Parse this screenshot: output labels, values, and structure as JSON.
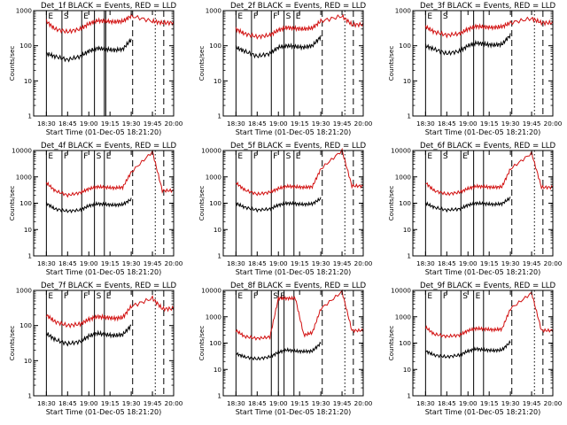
{
  "figure": {
    "colors": {
      "events": "#000000",
      "lld": "#d21010",
      "axes": "#000000",
      "background": "#ffffff"
    },
    "x_tick_labels": [
      "18:30",
      "18:45",
      "19:00",
      "19:15",
      "19:30",
      "19:45",
      "20:00"
    ],
    "x_label": "Start Time (01-Dec-05 18:21:20)",
    "y_label": "Counts/sec",
    "panels": [
      {
        "title": "Det_1f BLACK = Events, RED = LLD",
        "ymax": 1000,
        "yticks": [
          "1",
          "10",
          "100",
          "1000"
        ],
        "flags": [
          "E",
          "S",
          "E"
        ]
      },
      {
        "title": "Det_2f BLACK = Events, RED = LLD",
        "ymax": 1000,
        "yticks": [
          "1",
          "10",
          "100",
          "1000"
        ],
        "flags": [
          "E",
          "F",
          "F",
          "S",
          "E"
        ]
      },
      {
        "title": "Det_3f BLACK = Events, RED = LLD",
        "ymax": 1000,
        "yticks": [
          "1",
          "10",
          "100",
          "1000"
        ],
        "flags": [
          "E",
          "S"
        ]
      },
      {
        "title": "Det_4f BLACK = Events, RED = LLD",
        "ymax": 10000,
        "yticks": [
          "1",
          "10",
          "100",
          "1000",
          "10000"
        ],
        "flags": [
          "E",
          "F",
          "F",
          "S",
          "E"
        ]
      },
      {
        "title": "Det_5f BLACK = Events, RED = LLD",
        "ymax": 10000,
        "yticks": [
          "1",
          "10",
          "100",
          "1000",
          "10000"
        ],
        "flags": [
          "E",
          "F",
          "F",
          "S",
          "E"
        ]
      },
      {
        "title": "Det_6f BLACK = Events, RED = LLD",
        "ymax": 10000,
        "yticks": [
          "1",
          "10",
          "100",
          "1000",
          "10000"
        ],
        "flags": [
          "E",
          "S",
          "E"
        ]
      },
      {
        "title": "Det_7f BLACK = Events, RED = LLD",
        "ymax": 1000,
        "yticks": [
          "1",
          "10",
          "100",
          "1000"
        ],
        "flags": [
          "E",
          "F",
          "F",
          "S",
          "E"
        ]
      },
      {
        "title": "Det_8f BLACK = Events, RED = LLD",
        "ymax": 10000,
        "yticks": [
          "1",
          "10",
          "100",
          "1000",
          "10000"
        ],
        "flags": [
          "E",
          "F",
          "S",
          "E"
        ]
      },
      {
        "title": "Det_9f BLACK = Events, RED = LLD",
        "ymax": 10000,
        "yticks": [
          "1",
          "10",
          "100",
          "1000",
          "10000"
        ],
        "flags": [
          "E",
          "F",
          "S",
          "E"
        ]
      }
    ]
  },
  "chart_data": [
    {
      "type": "line",
      "title": "Det_1f BLACK = Events, RED = LLD",
      "xlabel": "Start Time (01-Dec-05 18:21:20)",
      "ylabel": "Counts/sec",
      "x": [
        "18:30",
        "18:36",
        "18:45",
        "18:54",
        "19:00",
        "19:06",
        "19:12",
        "19:18",
        "19:24",
        "19:30",
        "19:45",
        "19:52",
        "20:00"
      ],
      "x_range": [
        "18:21",
        "20:00"
      ],
      "ylim": [
        1,
        1000
      ],
      "yscale": "log",
      "series": [
        {
          "name": "Events",
          "values": [
            60,
            50,
            40,
            50,
            70,
            85,
            80,
            75,
            80,
            150,
            null,
            null,
            null
          ]
        },
        {
          "name": "LLD",
          "values": [
            500,
            300,
            250,
            300,
            420,
            520,
            500,
            480,
            500,
            700,
            500,
            450,
            450
          ]
        }
      ],
      "vlines": [
        {
          "time": "18:30",
          "style": "solid"
        },
        {
          "time": "18:41",
          "style": "solid"
        },
        {
          "time": "18:55",
          "style": "solid"
        },
        {
          "time": "19:04",
          "style": "solid"
        },
        {
          "time": "19:11",
          "style": "solid"
        },
        {
          "time": "19:12",
          "style": "solid"
        },
        {
          "time": "19:31",
          "style": "dashed"
        },
        {
          "time": "19:53",
          "style": "dashed"
        },
        {
          "time": "19:47",
          "style": "dotted"
        }
      ]
    },
    {
      "type": "line",
      "title": "Det_2f BLACK = Events, RED = LLD",
      "xlabel": "Start Time (01-Dec-05 18:21:20)",
      "ylabel": "Counts/sec",
      "x": [
        "18:30",
        "18:36",
        "18:45",
        "18:54",
        "19:00",
        "19:06",
        "19:12",
        "19:18",
        "19:24",
        "19:30",
        "19:45",
        "19:52",
        "20:00"
      ],
      "x_range": [
        "18:21",
        "20:00"
      ],
      "ylim": [
        1,
        1000
      ],
      "yscale": "log",
      "series": [
        {
          "name": "Events",
          "values": [
            90,
            70,
            50,
            60,
            90,
            100,
            95,
            90,
            100,
            180,
            null,
            null,
            null
          ]
        },
        {
          "name": "LLD",
          "values": [
            300,
            220,
            180,
            200,
            280,
            330,
            310,
            300,
            320,
            500,
            700,
            400,
            400
          ]
        }
      ],
      "vlines": [
        {
          "time": "18:30",
          "style": "solid"
        },
        {
          "time": "18:41",
          "style": "solid"
        },
        {
          "time": "18:55",
          "style": "solid"
        },
        {
          "time": "19:04",
          "style": "solid"
        },
        {
          "time": "19:11",
          "style": "solid"
        },
        {
          "time": "19:31",
          "style": "dashed"
        },
        {
          "time": "19:53",
          "style": "dashed"
        },
        {
          "time": "19:47",
          "style": "dotted"
        }
      ]
    },
    {
      "type": "line",
      "title": "Det_3f BLACK = Events, RED = LLD",
      "xlabel": "Start Time (01-Dec-05 18:21:20)",
      "ylabel": "Counts/sec",
      "x": [
        "18:30",
        "18:36",
        "18:45",
        "18:54",
        "19:00",
        "19:06",
        "19:12",
        "19:18",
        "19:24",
        "19:30",
        "19:45",
        "19:52",
        "20:00"
      ],
      "x_range": [
        "18:21",
        "20:00"
      ],
      "ylim": [
        1,
        1000
      ],
      "yscale": "log",
      "series": [
        {
          "name": "Events",
          "values": [
            100,
            80,
            60,
            70,
            100,
            120,
            110,
            105,
            110,
            200,
            null,
            null,
            null
          ]
        },
        {
          "name": "LLD",
          "values": [
            350,
            250,
            200,
            220,
            300,
            360,
            340,
            330,
            350,
            450,
            600,
            450,
            450
          ]
        }
      ],
      "vlines": [
        {
          "time": "18:30",
          "style": "solid"
        },
        {
          "time": "18:41",
          "style": "solid"
        },
        {
          "time": "18:55",
          "style": "solid"
        },
        {
          "time": "19:04",
          "style": "solid"
        },
        {
          "time": "19:11",
          "style": "solid"
        },
        {
          "time": "19:31",
          "style": "dashed"
        },
        {
          "time": "19:53",
          "style": "dashed"
        },
        {
          "time": "19:47",
          "style": "dotted"
        }
      ]
    },
    {
      "type": "line",
      "title": "Det_4f BLACK = Events, RED = LLD",
      "xlabel": "Start Time (01-Dec-05 18:21:20)",
      "ylabel": "Counts/sec",
      "x": [
        "18:30",
        "18:36",
        "18:45",
        "18:54",
        "19:00",
        "19:06",
        "19:12",
        "19:18",
        "19:24",
        "19:30",
        "19:45",
        "19:52",
        "20:00"
      ],
      "x_range": [
        "18:21",
        "20:00"
      ],
      "ylim": [
        1,
        10000
      ],
      "yscale": "log",
      "series": [
        {
          "name": "Events",
          "values": [
            100,
            60,
            50,
            55,
            80,
            95,
            90,
            85,
            90,
            140,
            null,
            null,
            null
          ]
        },
        {
          "name": "LLD",
          "values": [
            600,
            300,
            200,
            250,
            350,
            420,
            400,
            380,
            400,
            1500,
            9000,
            300,
            300
          ]
        }
      ],
      "vlines": [
        {
          "time": "18:30",
          "style": "solid"
        },
        {
          "time": "18:41",
          "style": "solid"
        },
        {
          "time": "18:55",
          "style": "solid"
        },
        {
          "time": "19:04",
          "style": "solid"
        },
        {
          "time": "19:11",
          "style": "solid"
        },
        {
          "time": "19:31",
          "style": "dashed"
        },
        {
          "time": "19:53",
          "style": "dashed"
        },
        {
          "time": "19:47",
          "style": "dotted"
        }
      ]
    },
    {
      "type": "line",
      "title": "Det_5f BLACK = Events, RED = LLD",
      "xlabel": "Start Time (01-Dec-05 18:21:20)",
      "ylabel": "Counts/sec",
      "x": [
        "18:30",
        "18:36",
        "18:45",
        "18:54",
        "19:00",
        "19:06",
        "19:12",
        "19:18",
        "19:24",
        "19:30",
        "19:45",
        "19:52",
        "20:00"
      ],
      "x_range": [
        "18:21",
        "20:00"
      ],
      "ylim": [
        1,
        10000
      ],
      "yscale": "log",
      "series": [
        {
          "name": "Events",
          "values": [
            100,
            70,
            55,
            60,
            85,
            100,
            95,
            90,
            95,
            150,
            null,
            null,
            null
          ]
        },
        {
          "name": "LLD",
          "values": [
            600,
            320,
            220,
            260,
            360,
            440,
            420,
            400,
            420,
            2000,
            10000,
            450,
            450
          ]
        }
      ],
      "vlines": [
        {
          "time": "18:30",
          "style": "solid"
        },
        {
          "time": "18:41",
          "style": "solid"
        },
        {
          "time": "18:55",
          "style": "solid"
        },
        {
          "time": "19:04",
          "style": "solid"
        },
        {
          "time": "19:11",
          "style": "solid"
        },
        {
          "time": "19:31",
          "style": "dashed"
        },
        {
          "time": "19:53",
          "style": "dashed"
        },
        {
          "time": "19:47",
          "style": "dotted"
        }
      ]
    },
    {
      "type": "line",
      "title": "Det_6f BLACK = Events, RED = LLD",
      "xlabel": "Start Time (01-Dec-05 18:21:20)",
      "ylabel": "Counts/sec",
      "x": [
        "18:30",
        "18:36",
        "18:45",
        "18:54",
        "19:00",
        "19:06",
        "19:12",
        "19:18",
        "19:24",
        "19:30",
        "19:45",
        "19:52",
        "20:00"
      ],
      "x_range": [
        "18:21",
        "20:00"
      ],
      "ylim": [
        1,
        10000
      ],
      "yscale": "log",
      "series": [
        {
          "name": "Events",
          "values": [
            100,
            70,
            55,
            60,
            85,
            100,
            95,
            90,
            95,
            160,
            null,
            null,
            null
          ]
        },
        {
          "name": "LLD",
          "values": [
            600,
            300,
            220,
            260,
            360,
            440,
            420,
            400,
            420,
            2000,
            8000,
            400,
            400
          ]
        }
      ],
      "vlines": [
        {
          "time": "18:30",
          "style": "solid"
        },
        {
          "time": "18:41",
          "style": "solid"
        },
        {
          "time": "18:55",
          "style": "solid"
        },
        {
          "time": "19:04",
          "style": "solid"
        },
        {
          "time": "19:11",
          "style": "solid"
        },
        {
          "time": "19:31",
          "style": "dashed"
        },
        {
          "time": "19:53",
          "style": "dashed"
        },
        {
          "time": "19:47",
          "style": "dotted"
        }
      ]
    },
    {
      "type": "line",
      "title": "Det_7f BLACK = Events, RED = LLD",
      "xlabel": "Start Time (01-Dec-05 18:21:20)",
      "ylabel": "Counts/sec",
      "x": [
        "18:30",
        "18:36",
        "18:45",
        "18:54",
        "19:00",
        "19:06",
        "19:12",
        "19:18",
        "19:24",
        "19:30",
        "19:45",
        "19:52",
        "20:00"
      ],
      "x_range": [
        "18:21",
        "20:00"
      ],
      "ylim": [
        1,
        1000
      ],
      "yscale": "log",
      "series": [
        {
          "name": "Events",
          "values": [
            60,
            40,
            30,
            35,
            50,
            60,
            55,
            52,
            55,
            100,
            null,
            null,
            null
          ]
        },
        {
          "name": "LLD",
          "values": [
            200,
            130,
            100,
            110,
            150,
            180,
            170,
            160,
            170,
            350,
            600,
            300,
            300
          ]
        }
      ],
      "vlines": [
        {
          "time": "18:30",
          "style": "solid"
        },
        {
          "time": "18:41",
          "style": "solid"
        },
        {
          "time": "18:55",
          "style": "solid"
        },
        {
          "time": "19:04",
          "style": "solid"
        },
        {
          "time": "19:11",
          "style": "solid"
        },
        {
          "time": "19:31",
          "style": "dashed"
        },
        {
          "time": "19:53",
          "style": "dashed"
        },
        {
          "time": "19:47",
          "style": "dotted"
        }
      ]
    },
    {
      "type": "line",
      "title": "Det_8f BLACK = Events, RED = LLD",
      "xlabel": "Start Time (01-Dec-05 18:21:20)",
      "ylabel": "Counts/sec",
      "x": [
        "18:30",
        "18:36",
        "18:45",
        "18:54",
        "19:00",
        "19:06",
        "19:12",
        "19:18",
        "19:24",
        "19:30",
        "19:45",
        "19:52",
        "20:00"
      ],
      "x_range": [
        "18:21",
        "20:00"
      ],
      "ylim": [
        1,
        10000
      ],
      "yscale": "log",
      "series": [
        {
          "name": "Events",
          "values": [
            40,
            30,
            25,
            30,
            45,
            55,
            50,
            48,
            50,
            100,
            null,
            null,
            null
          ]
        },
        {
          "name": "LLD",
          "values": [
            300,
            180,
            150,
            170,
            5000,
            5000,
            5000,
            200,
            250,
            2000,
            9000,
            300,
            300
          ]
        }
      ],
      "vlines": [
        {
          "time": "18:30",
          "style": "solid"
        },
        {
          "time": "18:41",
          "style": "solid"
        },
        {
          "time": "18:55",
          "style": "solid"
        },
        {
          "time": "19:00",
          "style": "solid"
        },
        {
          "time": "19:04",
          "style": "solid"
        },
        {
          "time": "19:11",
          "style": "solid"
        },
        {
          "time": "19:31",
          "style": "dashed"
        },
        {
          "time": "19:53",
          "style": "dashed"
        },
        {
          "time": "19:47",
          "style": "dotted"
        }
      ]
    },
    {
      "type": "line",
      "title": "Det_9f BLACK = Events, RED = LLD",
      "xlabel": "Start Time (01-Dec-05 18:21:20)",
      "ylabel": "Counts/sec",
      "x": [
        "18:30",
        "18:36",
        "18:45",
        "18:54",
        "19:00",
        "19:06",
        "19:12",
        "19:18",
        "19:24",
        "19:30",
        "19:45",
        "19:52",
        "20:00"
      ],
      "x_range": [
        "18:21",
        "20:00"
      ],
      "ylim": [
        1,
        10000
      ],
      "yscale": "log",
      "series": [
        {
          "name": "Events",
          "values": [
            50,
            35,
            30,
            35,
            50,
            60,
            55,
            52,
            55,
            110,
            null,
            null,
            null
          ]
        },
        {
          "name": "LLD",
          "values": [
            400,
            220,
            180,
            200,
            300,
            360,
            340,
            320,
            340,
            2000,
            8000,
            300,
            300
          ]
        }
      ],
      "vlines": [
        {
          "time": "18:30",
          "style": "solid"
        },
        {
          "time": "18:41",
          "style": "solid"
        },
        {
          "time": "18:55",
          "style": "solid"
        },
        {
          "time": "19:04",
          "style": "solid"
        },
        {
          "time": "19:11",
          "style": "solid"
        },
        {
          "time": "19:31",
          "style": "dashed"
        },
        {
          "time": "19:53",
          "style": "dashed"
        },
        {
          "time": "19:47",
          "style": "dotted"
        }
      ]
    }
  ]
}
